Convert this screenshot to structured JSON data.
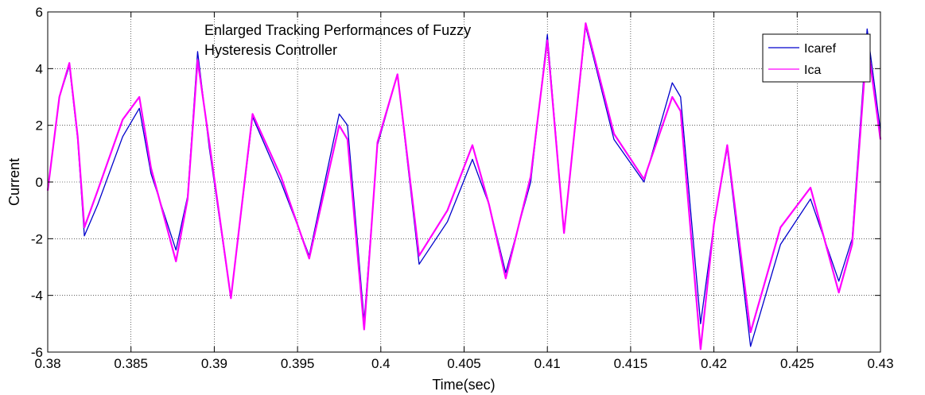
{
  "chart_data": {
    "type": "line",
    "title": "",
    "annotation": [
      "Enlarged Tracking Performances of Fuzzy",
      "Hysteresis Controller"
    ],
    "xlabel": "Time(sec)",
    "ylabel": "Current",
    "xlim": [
      0.38,
      0.43
    ],
    "ylim": [
      -6,
      6
    ],
    "xticks": [
      0.38,
      0.385,
      0.39,
      0.395,
      0.4,
      0.405,
      0.41,
      0.415,
      0.42,
      0.425,
      0.43
    ],
    "xtick_labels": [
      "0.38",
      "0.385",
      "0.39",
      "0.395",
      "0.4",
      "0.405",
      "0.41",
      "0.415",
      "0.42",
      "0.425",
      "0.43"
    ],
    "yticks": [
      -6,
      -4,
      -2,
      0,
      2,
      4,
      6
    ],
    "ytick_labels": [
      "-6",
      "-4",
      "-2",
      "0",
      "2",
      "4",
      "6"
    ],
    "grid": true,
    "legend_position": "top-right",
    "series": [
      {
        "name": "Icaref",
        "color": "#0000cc",
        "x": [
          0.38,
          0.3807,
          0.3813,
          0.3818,
          0.3822,
          0.383,
          0.3845,
          0.3855,
          0.3862,
          0.3877,
          0.3884,
          0.389,
          0.3897,
          0.391,
          0.3923,
          0.394,
          0.3957,
          0.3975,
          0.398,
          0.399,
          0.3998,
          0.401,
          0.4023,
          0.404,
          0.4055,
          0.4065,
          0.4075,
          0.409,
          0.41,
          0.411,
          0.4123,
          0.414,
          0.4158,
          0.4175,
          0.418,
          0.4192,
          0.42,
          0.4208,
          0.4222,
          0.424,
          0.4258,
          0.4275,
          0.4283,
          0.4292,
          0.43
        ],
        "y": [
          -0.3,
          3.0,
          4.1,
          1.5,
          -1.9,
          -0.8,
          1.6,
          2.6,
          0.3,
          -2.4,
          -0.5,
          4.6,
          1.2,
          -4.1,
          2.3,
          0.0,
          -2.6,
          2.4,
          2.0,
          -4.9,
          1.3,
          3.8,
          -2.9,
          -1.4,
          0.8,
          -0.8,
          -3.2,
          0.0,
          5.2,
          -1.8,
          5.5,
          1.5,
          0.0,
          3.5,
          3.0,
          -5.0,
          -1.5,
          1.2,
          -5.8,
          -2.2,
          -0.6,
          -3.5,
          -2.0,
          5.4,
          1.8
        ]
      },
      {
        "name": "Ica",
        "color": "#ff00ff",
        "x": [
          0.38,
          0.3807,
          0.3813,
          0.3818,
          0.3822,
          0.383,
          0.3845,
          0.3855,
          0.3862,
          0.3877,
          0.3884,
          0.389,
          0.3897,
          0.391,
          0.3923,
          0.394,
          0.3957,
          0.3975,
          0.398,
          0.399,
          0.3998,
          0.401,
          0.4023,
          0.404,
          0.4055,
          0.4065,
          0.4075,
          0.409,
          0.41,
          0.411,
          0.4123,
          0.414,
          0.4158,
          0.4175,
          0.418,
          0.4192,
          0.42,
          0.4208,
          0.4222,
          0.424,
          0.4258,
          0.4275,
          0.4283,
          0.4292,
          0.43
        ],
        "y": [
          -0.3,
          3.0,
          4.2,
          1.6,
          -1.6,
          -0.3,
          2.2,
          3.0,
          0.5,
          -2.8,
          -0.6,
          4.3,
          1.4,
          -4.1,
          2.4,
          0.2,
          -2.7,
          2.0,
          1.5,
          -5.2,
          1.4,
          3.8,
          -2.6,
          -1.0,
          1.3,
          -0.8,
          -3.4,
          0.2,
          5.0,
          -1.8,
          5.6,
          1.7,
          0.1,
          3.0,
          2.5,
          -5.9,
          -1.5,
          1.3,
          -5.3,
          -1.6,
          -0.2,
          -3.9,
          -2.2,
          5.0,
          1.5
        ]
      }
    ]
  }
}
